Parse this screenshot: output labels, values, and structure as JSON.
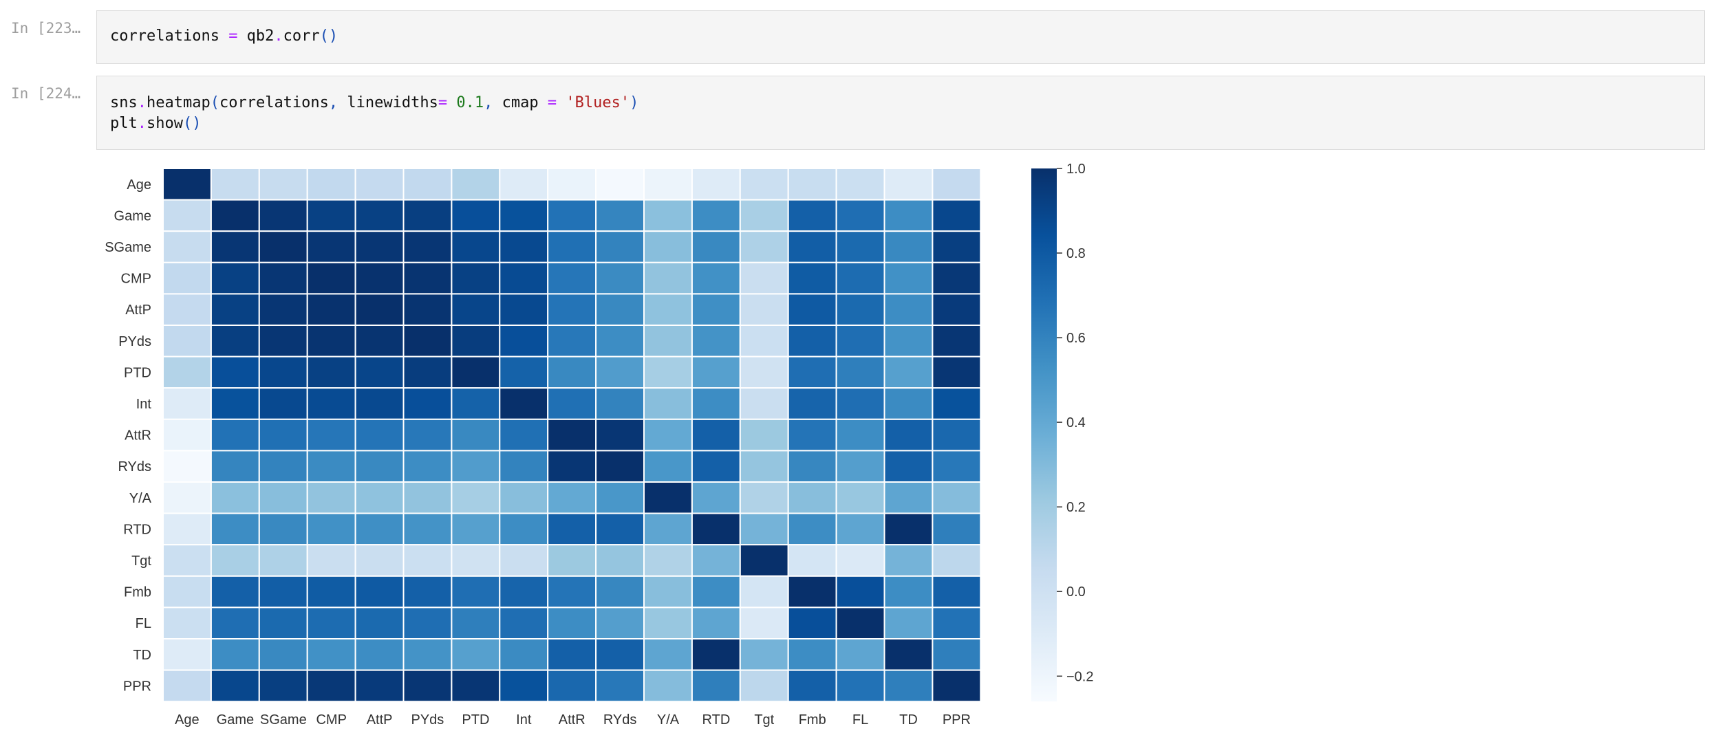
{
  "cells": [
    {
      "prompt": "In [223…",
      "code": [
        [
          {
            "t": "correlations ",
            "c": "fn"
          },
          {
            "t": "=",
            "c": "op"
          },
          {
            "t": " qb2",
            "c": "fn"
          },
          {
            "t": ".",
            "c": "op"
          },
          {
            "t": "corr",
            "c": "fn"
          },
          {
            "t": "()",
            "c": "par"
          }
        ]
      ]
    },
    {
      "prompt": "In [224…",
      "code": [
        [
          {
            "t": "sns",
            "c": "fn"
          },
          {
            "t": ".",
            "c": "op"
          },
          {
            "t": "heatmap",
            "c": "fn"
          },
          {
            "t": "(",
            "c": "par"
          },
          {
            "t": "correlations",
            "c": "fn"
          },
          {
            "t": ",",
            "c": "par"
          },
          {
            "t": " linewidths",
            "c": "fn"
          },
          {
            "t": "=",
            "c": "op"
          },
          {
            "t": " ",
            "c": "fn"
          },
          {
            "t": "0.1",
            "c": "num"
          },
          {
            "t": ",",
            "c": "par"
          },
          {
            "t": " cmap ",
            "c": "fn"
          },
          {
            "t": "=",
            "c": "op"
          },
          {
            "t": " ",
            "c": "fn"
          },
          {
            "t": "'Blues'",
            "c": "str"
          },
          {
            "t": ")",
            "c": "par"
          }
        ],
        [
          {
            "t": "plt",
            "c": "fn"
          },
          {
            "t": ".",
            "c": "op"
          },
          {
            "t": "show",
            "c": "fn"
          },
          {
            "t": "()",
            "c": "par"
          }
        ]
      ]
    }
  ],
  "colors": {
    "cmap_low": "#f7fbff",
    "cmap_high": "#08306b",
    "cell_bg": "#f5f5f5",
    "prompt": "#9e9e9e"
  },
  "chart_data": {
    "type": "heatmap",
    "labels": [
      "Age",
      "Game",
      "SGame",
      "CMP",
      "AttP",
      "PYds",
      "PTD",
      "Int",
      "AttR",
      "RYds",
      "Y/A",
      "RTD",
      "Tgt",
      "Fmb",
      "FL",
      "TD",
      "PPR"
    ],
    "vmin": -0.26,
    "vmax": 1.0,
    "colorbar_ticks": [
      1.0,
      0.8,
      0.6,
      0.4,
      0.2,
      0.0,
      -0.2
    ],
    "colorbar_tick_labels": [
      "1.0",
      "0.8",
      "0.6",
      "0.4",
      "0.2",
      "0.0",
      "−0.2"
    ],
    "cmap": "Blues",
    "linewidths": 0.1,
    "matrix": [
      [
        1.0,
        0.05,
        0.05,
        0.07,
        0.06,
        0.07,
        0.13,
        -0.1,
        -0.18,
        -0.24,
        -0.19,
        -0.1,
        0.02,
        0.04,
        0.02,
        -0.1,
        0.06
      ],
      [
        0.05,
        1.0,
        0.97,
        0.92,
        0.92,
        0.93,
        0.85,
        0.84,
        0.68,
        0.59,
        0.27,
        0.55,
        0.17,
        0.77,
        0.7,
        0.55,
        0.89
      ],
      [
        0.05,
        0.97,
        1.0,
        0.97,
        0.97,
        0.97,
        0.89,
        0.88,
        0.69,
        0.6,
        0.28,
        0.57,
        0.15,
        0.78,
        0.72,
        0.57,
        0.93
      ],
      [
        0.07,
        0.92,
        0.97,
        1.0,
        0.99,
        0.98,
        0.92,
        0.87,
        0.66,
        0.56,
        0.25,
        0.53,
        0.03,
        0.79,
        0.71,
        0.53,
        0.96
      ],
      [
        0.06,
        0.92,
        0.97,
        0.99,
        1.0,
        0.98,
        0.9,
        0.88,
        0.67,
        0.57,
        0.26,
        0.54,
        0.03,
        0.8,
        0.72,
        0.55,
        0.95
      ],
      [
        0.07,
        0.93,
        0.97,
        0.98,
        0.98,
        1.0,
        0.94,
        0.85,
        0.65,
        0.55,
        0.25,
        0.52,
        0.02,
        0.77,
        0.7,
        0.52,
        0.97
      ],
      [
        0.13,
        0.85,
        0.89,
        0.92,
        0.9,
        0.94,
        1.0,
        0.76,
        0.57,
        0.47,
        0.18,
        0.45,
        -0.01,
        0.7,
        0.62,
        0.45,
        0.97
      ],
      [
        -0.1,
        0.84,
        0.88,
        0.87,
        0.88,
        0.85,
        0.76,
        1.0,
        0.69,
        0.6,
        0.28,
        0.55,
        0.03,
        0.75,
        0.7,
        0.56,
        0.84
      ],
      [
        -0.18,
        0.68,
        0.69,
        0.66,
        0.67,
        0.65,
        0.57,
        0.69,
        1.0,
        0.97,
        0.4,
        0.77,
        0.22,
        0.67,
        0.55,
        0.77,
        0.73
      ],
      [
        -0.24,
        0.59,
        0.6,
        0.56,
        0.57,
        0.55,
        0.47,
        0.6,
        0.97,
        1.0,
        0.5,
        0.77,
        0.24,
        0.58,
        0.46,
        0.77,
        0.65
      ],
      [
        -0.19,
        0.27,
        0.28,
        0.25,
        0.26,
        0.25,
        0.18,
        0.28,
        0.4,
        0.5,
        1.0,
        0.42,
        0.14,
        0.28,
        0.23,
        0.42,
        0.29
      ],
      [
        -0.1,
        0.55,
        0.57,
        0.53,
        0.54,
        0.52,
        0.45,
        0.55,
        0.77,
        0.77,
        0.42,
        1.0,
        0.34,
        0.55,
        0.42,
        1.0,
        0.62
      ],
      [
        0.02,
        0.17,
        0.15,
        0.03,
        0.03,
        0.02,
        -0.01,
        0.03,
        0.22,
        0.24,
        0.14,
        0.34,
        1.0,
        -0.04,
        -0.08,
        0.34,
        0.09
      ],
      [
        0.04,
        0.77,
        0.78,
        0.79,
        0.8,
        0.77,
        0.7,
        0.75,
        0.67,
        0.58,
        0.28,
        0.55,
        -0.04,
        1.0,
        0.85,
        0.55,
        0.77
      ],
      [
        0.02,
        0.7,
        0.72,
        0.71,
        0.72,
        0.7,
        0.62,
        0.7,
        0.55,
        0.46,
        0.23,
        0.42,
        -0.08,
        0.85,
        1.0,
        0.42,
        0.68
      ],
      [
        -0.1,
        0.55,
        0.57,
        0.53,
        0.55,
        0.52,
        0.45,
        0.56,
        0.77,
        0.77,
        0.42,
        1.0,
        0.34,
        0.55,
        0.42,
        1.0,
        0.62
      ],
      [
        0.06,
        0.89,
        0.93,
        0.96,
        0.95,
        0.97,
        0.97,
        0.84,
        0.73,
        0.65,
        0.29,
        0.62,
        0.09,
        0.77,
        0.68,
        0.62,
        1.0
      ]
    ]
  }
}
